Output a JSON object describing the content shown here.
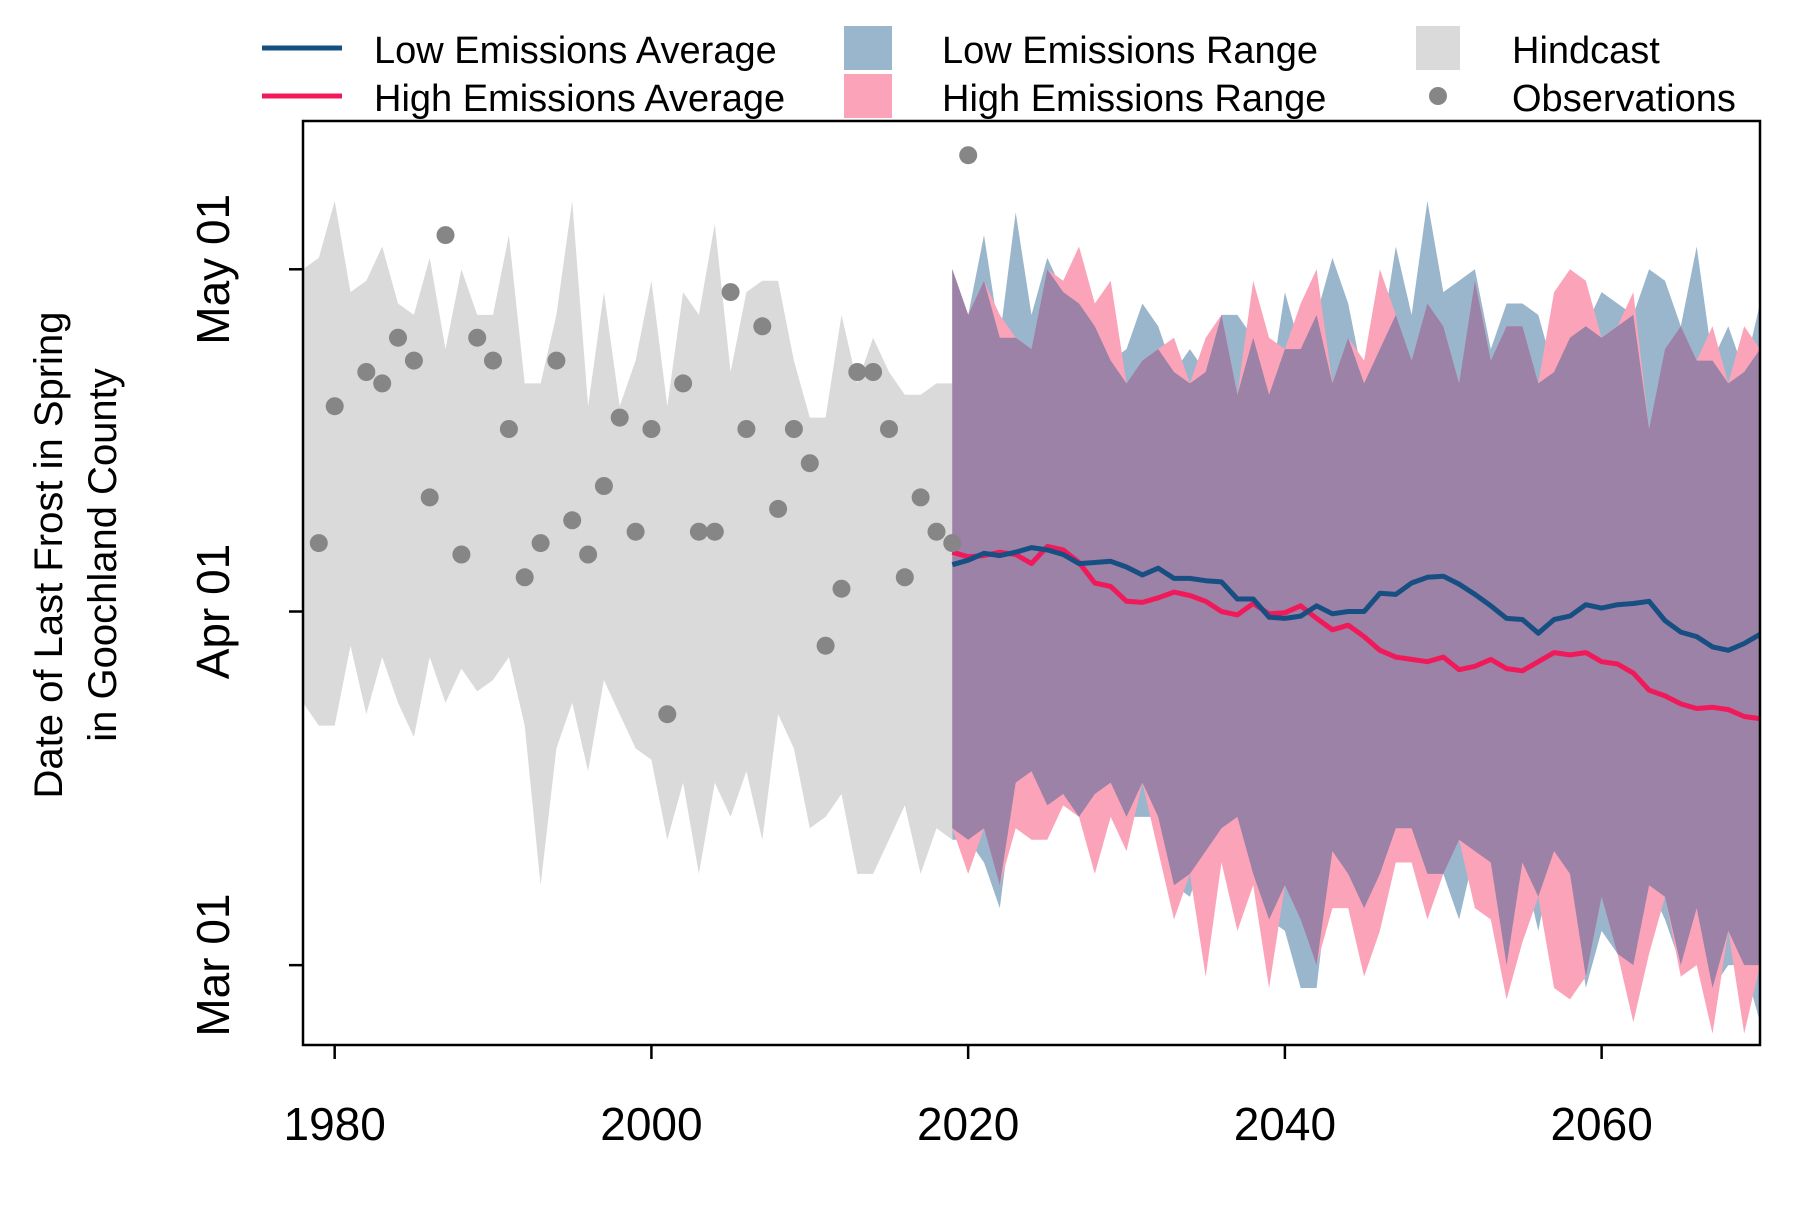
{
  "chart_data": {
    "type": "line",
    "ylabel_line1": "Date of Last Frost in Spring",
    "ylabel_line2": "in Goochland County",
    "xlabel": "",
    "xlim": [
      1978,
      2070
    ],
    "ylim": [
      53,
      134
    ],
    "x_ticks": [
      1980,
      2000,
      2020,
      2040,
      2060
    ],
    "y_ticks": [
      {
        "label": "Mar 01",
        "doy": 60
      },
      {
        "label": "Apr 01",
        "doy": 91
      },
      {
        "label": "May 01",
        "doy": 121
      }
    ],
    "legend": {
      "low_avg": "Low Emissions Average",
      "high_avg": "High Emissions Average",
      "low_range": "Low Emissions Range",
      "high_range": "High Emissions Range",
      "hindcast": "Hindcast",
      "observations": "Observations"
    },
    "colors": {
      "low": "#174f82",
      "high": "#f01a5a",
      "low_range": "#9ab6cc",
      "high_range": "#fba4b9",
      "overlap": "#9b82a6",
      "hindcast": "#dadada",
      "observations": "#868686"
    },
    "hindcast": {
      "years": [
        1978,
        1979,
        1980,
        1981,
        1982,
        1983,
        1984,
        1985,
        1986,
        1987,
        1988,
        1989,
        1990,
        1991,
        1992,
        1993,
        1994,
        1995,
        1996,
        1997,
        1998,
        1999,
        2000,
        2001,
        2002,
        2003,
        2004,
        2005,
        2006,
        2007,
        2008,
        2009,
        2010,
        2011,
        2012,
        2013,
        2014,
        2015,
        2016,
        2017,
        2018,
        2019
      ],
      "upper": [
        121,
        122,
        127,
        119,
        120,
        123,
        118,
        117,
        122,
        114,
        121,
        117,
        117,
        124,
        111,
        111,
        117,
        127,
        109,
        119,
        109,
        113,
        120,
        109,
        119,
        117,
        125,
        112,
        119,
        120,
        120,
        113,
        108,
        108,
        117,
        111,
        115,
        112,
        110,
        110,
        111,
        111
      ],
      "lower": [
        83,
        81,
        81,
        88,
        82,
        87,
        83,
        80,
        87,
        83,
        86,
        84,
        85,
        87,
        81,
        67,
        79,
        83,
        77,
        85,
        82,
        79,
        78,
        71,
        76,
        68,
        76,
        73,
        77,
        71,
        82,
        79,
        72,
        73,
        75,
        68,
        68,
        71,
        74,
        68,
        72,
        71
      ]
    },
    "observations": {
      "years": [
        1979,
        1980,
        1982,
        1983,
        1984,
        1985,
        1986,
        1987,
        1988,
        1989,
        1990,
        1991,
        1992,
        1993,
        1994,
        1995,
        1996,
        1997,
        1998,
        1999,
        2000,
        2001,
        2002,
        2003,
        2004,
        2005,
        2006,
        2007,
        2008,
        2009,
        2010,
        2011,
        2012,
        2013,
        2014,
        2015,
        2016,
        2017,
        2018,
        2019,
        2020
      ],
      "doy": [
        97,
        109,
        112,
        111,
        115,
        113,
        101,
        124,
        96,
        115,
        113,
        107,
        94,
        97,
        113,
        99,
        96,
        102,
        108,
        98,
        107,
        82,
        111,
        98,
        98,
        119,
        107,
        116,
        100,
        107,
        104,
        88,
        93,
        112,
        112,
        107,
        94,
        101,
        98,
        97,
        131
      ]
    },
    "projection": {
      "years": [
        2019,
        2020,
        2021,
        2022,
        2023,
        2024,
        2025,
        2026,
        2027,
        2028,
        2029,
        2030,
        2031,
        2032,
        2033,
        2034,
        2035,
        2036,
        2037,
        2038,
        2039,
        2040,
        2041,
        2042,
        2043,
        2044,
        2045,
        2046,
        2047,
        2048,
        2049,
        2050,
        2051,
        2052,
        2053,
        2054,
        2055,
        2056,
        2057,
        2058,
        2059,
        2060,
        2061,
        2062,
        2063,
        2064,
        2065,
        2066,
        2067,
        2068,
        2069,
        2070
      ],
      "low_avg": [
        95.1,
        95.5,
        96.1,
        95.9,
        96.2,
        96.6,
        96.4,
        96.0,
        95.2,
        95.3,
        95.4,
        94.9,
        94.2,
        94.8,
        93.9,
        93.9,
        93.7,
        93.6,
        92.1,
        92.1,
        90.5,
        90.4,
        90.6,
        91.5,
        90.8,
        91.0,
        91.0,
        92.6,
        92.5,
        93.5,
        94.0,
        94.1,
        93.4,
        92.5,
        91.5,
        90.4,
        90.3,
        89.1,
        90.3,
        90.6,
        91.6,
        91.3,
        91.6,
        91.7,
        91.9,
        90.2,
        89.2,
        88.8,
        87.9,
        87.6,
        88.2,
        89.0
      ],
      "high_avg": [
        96.2,
        95.8,
        95.9,
        96.2,
        96.0,
        95.2,
        96.7,
        96.4,
        95.3,
        93.5,
        93.2,
        91.9,
        91.8,
        92.2,
        92.7,
        92.4,
        91.9,
        91.0,
        90.7,
        91.7,
        90.8,
        90.9,
        91.5,
        90.4,
        89.4,
        89.8,
        88.8,
        87.6,
        87.0,
        86.8,
        86.6,
        87.0,
        85.9,
        86.2,
        86.8,
        86.0,
        85.8,
        86.6,
        87.4,
        87.2,
        87.4,
        86.6,
        86.4,
        85.6,
        84.1,
        83.6,
        82.9,
        82.5,
        82.6,
        82.4,
        81.8,
        81.6
      ],
      "low_upper": [
        121,
        117,
        124,
        115,
        126,
        117,
        122,
        119,
        118,
        116,
        113,
        114,
        118,
        116,
        112,
        114,
        112,
        117,
        117,
        115,
        110,
        119,
        114,
        117,
        122,
        118,
        111,
        114,
        123,
        117,
        127,
        119,
        120,
        121,
        114,
        118,
        118,
        117,
        112,
        115,
        116,
        119,
        118,
        117,
        121,
        120,
        116,
        123,
        113,
        116,
        112,
        118
      ],
      "low_lower": [
        71,
        71,
        69,
        65,
        76,
        77,
        74,
        75,
        73,
        75,
        76,
        73,
        73,
        73,
        67,
        66,
        70,
        72,
        73,
        68,
        64,
        63,
        58,
        58,
        70,
        68,
        65,
        68,
        72,
        72,
        68,
        68,
        64,
        70,
        69,
        60,
        69,
        63,
        70,
        68,
        58,
        63,
        61,
        60,
        67,
        64,
        60,
        65,
        58,
        60,
        60,
        55
      ],
      "high_upper": [
        121,
        117,
        120,
        117,
        115,
        114,
        121,
        120,
        123,
        118,
        120,
        111,
        113,
        114,
        115,
        111,
        115,
        117,
        110,
        120,
        115,
        114,
        118,
        121,
        111,
        115,
        113,
        121,
        117,
        113,
        118,
        116,
        111,
        120,
        113,
        116,
        116,
        111,
        119,
        121,
        120,
        115,
        116,
        119,
        107,
        114,
        116,
        113,
        116,
        111,
        116,
        114
      ],
      "high_lower": [
        72,
        68,
        72,
        67,
        72,
        71,
        71,
        74,
        73,
        68,
        73,
        70,
        76,
        70,
        64,
        68,
        59,
        69,
        63,
        67,
        58,
        67,
        64,
        60,
        65,
        65,
        59,
        63,
        69,
        69,
        64,
        68,
        71,
        65,
        64,
        57,
        62,
        66,
        58,
        57,
        59,
        66,
        61,
        55,
        61,
        66,
        59,
        60,
        54,
        63,
        54,
        60
      ]
    }
  }
}
